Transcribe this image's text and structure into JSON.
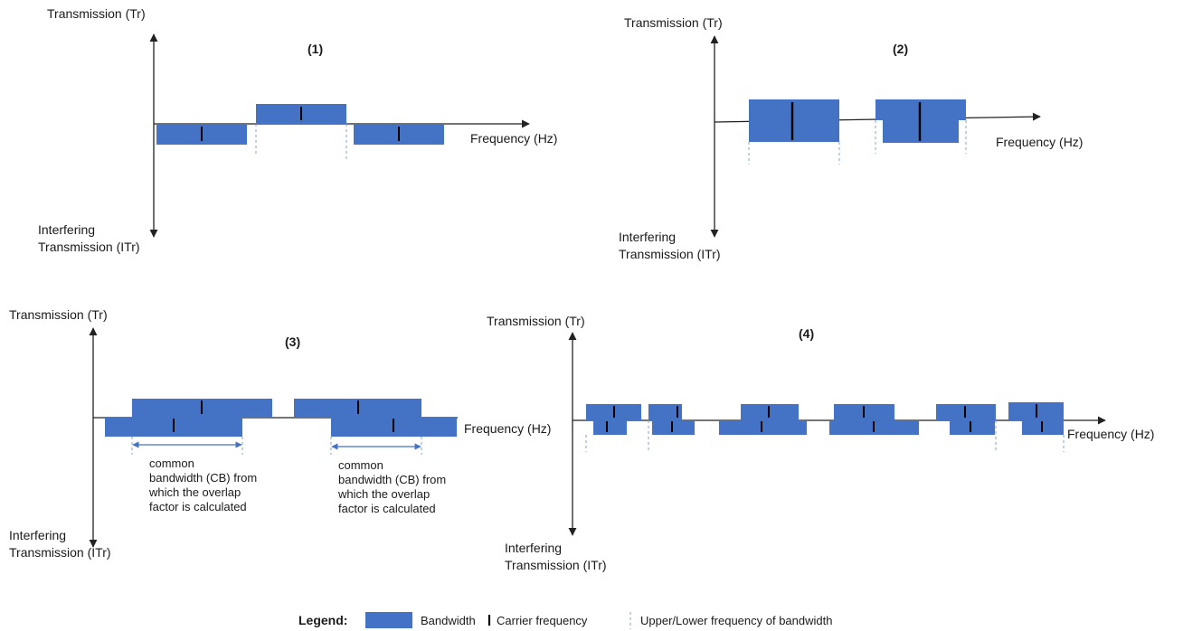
{
  "panels": [
    {
      "number": "(1)",
      "y_label": "Transmission (Tr)",
      "y_neg_label": "Interfering\nTransmission (ITr)",
      "x_label": "Frequency (Hz)"
    },
    {
      "number": "(2)",
      "y_label": "Transmission (Tr)",
      "y_neg_label": "Interfering\nTransmission (ITr)",
      "x_label": "Frequency (Hz)"
    },
    {
      "number": "(3)",
      "y_label": "Transmission (Tr)",
      "y_neg_label": "Interfering\nTransmission (ITr)",
      "x_label": "Frequency (Hz)"
    },
    {
      "number": "(4)",
      "y_label": "Transmission (Tr)",
      "y_neg_label": "Interfering\nTransmission (ITr)",
      "x_label": "Frequency (Hz)"
    }
  ],
  "annotations": [
    "common\nbandwidth (CB) from\nwhich the overlap\nfactor is calculated",
    "common\nbandwidth (CB) from\nwhich the overlap\nfactor is calculated"
  ],
  "legend": {
    "title": "Legend:",
    "bandwidth": "Bandwidth",
    "carrier": "Carrier frequency",
    "bounds": "Upper/Lower frequency of bandwidth"
  },
  "colors": {
    "band": "#4472c4",
    "band_stroke": "#3a62ad",
    "dashed": "#7aa3d6",
    "axis": "#222222"
  }
}
